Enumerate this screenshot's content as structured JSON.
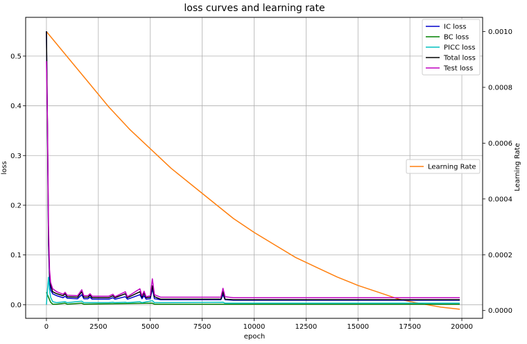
{
  "chart_data": {
    "type": "line",
    "title": "loss curves and learning rate",
    "xlabel": "epoch",
    "ylabel": "loss",
    "y2label": "Learning Rate",
    "xlim": [
      -1000,
      21000
    ],
    "ylim": [
      -0.0275,
      0.578
    ],
    "y2lim": [
      -2.8e-05,
      0.001051
    ],
    "x_ticks": [
      0,
      2500,
      5000,
      7500,
      10000,
      12500,
      15000,
      17500,
      20000
    ],
    "y_ticks": [
      0.0,
      0.1,
      0.2,
      0.3,
      0.4,
      0.5
    ],
    "y2_ticks": [
      0.0,
      0.0002,
      0.0004,
      0.0006,
      0.0008,
      0.001
    ],
    "x_tick_labels": [
      "0",
      "2500",
      "5000",
      "7500",
      "10000",
      "12500",
      "15000",
      "17500",
      "20000"
    ],
    "y_tick_labels": [
      "0.0",
      "0.1",
      "0.2",
      "0.3",
      "0.4",
      "0.5"
    ],
    "y2_tick_labels": [
      "0.0000",
      "0.0002",
      "0.0004",
      "0.0006",
      "0.0008",
      "0.0010"
    ],
    "grid": true,
    "legend_position": "top-right",
    "legend2_position": "center-right",
    "series": [
      {
        "name": "IC loss",
        "color": "#0000cc",
        "axis": "left",
        "points": [
          [
            0,
            0.55
          ],
          [
            50,
            0.35
          ],
          [
            100,
            0.12
          ],
          [
            150,
            0.05
          ],
          [
            200,
            0.03
          ],
          [
            300,
            0.022
          ],
          [
            500,
            0.018
          ],
          [
            800,
            0.014
          ],
          [
            900,
            0.017
          ],
          [
            1000,
            0.013
          ],
          [
            1500,
            0.012
          ],
          [
            1700,
            0.02
          ],
          [
            1800,
            0.012
          ],
          [
            2000,
            0.012
          ],
          [
            2100,
            0.015
          ],
          [
            2200,
            0.011
          ],
          [
            3000,
            0.011
          ],
          [
            3200,
            0.014
          ],
          [
            3300,
            0.011
          ],
          [
            3800,
            0.016
          ],
          [
            3900,
            0.011
          ],
          [
            4500,
            0.02
          ],
          [
            4600,
            0.012
          ],
          [
            4700,
            0.018
          ],
          [
            4800,
            0.011
          ],
          [
            5000,
            0.012
          ],
          [
            5100,
            0.032
          ],
          [
            5200,
            0.012
          ],
          [
            5500,
            0.01
          ],
          [
            8400,
            0.01
          ],
          [
            8500,
            0.02
          ],
          [
            8600,
            0.01
          ],
          [
            9000,
            0.009
          ],
          [
            19900,
            0.009
          ]
        ]
      },
      {
        "name": "BC loss",
        "color": "#008000",
        "axis": "left",
        "points": [
          [
            0,
            0.025
          ],
          [
            100,
            0.015
          ],
          [
            200,
            0.005
          ],
          [
            300,
            0.001
          ],
          [
            500,
            0.001
          ],
          [
            900,
            0.003
          ],
          [
            1000,
            0.001
          ],
          [
            1700,
            0.003
          ],
          [
            1800,
            0.001
          ],
          [
            5100,
            0.003
          ],
          [
            5200,
            0.001
          ],
          [
            19900,
            0.001
          ]
        ]
      },
      {
        "name": "PICC loss",
        "color": "#00bfbf",
        "axis": "left",
        "points": [
          [
            0,
            0.0
          ],
          [
            50,
            0.03
          ],
          [
            100,
            0.055
          ],
          [
            150,
            0.03
          ],
          [
            200,
            0.015
          ],
          [
            300,
            0.006
          ],
          [
            500,
            0.004
          ],
          [
            900,
            0.006
          ],
          [
            1000,
            0.004
          ],
          [
            1700,
            0.007
          ],
          [
            1800,
            0.004
          ],
          [
            3000,
            0.004
          ],
          [
            3200,
            0.005
          ],
          [
            3300,
            0.004
          ],
          [
            3800,
            0.005
          ],
          [
            3900,
            0.004
          ],
          [
            4500,
            0.006
          ],
          [
            4600,
            0.004
          ],
          [
            5100,
            0.008
          ],
          [
            5200,
            0.004
          ],
          [
            8500,
            0.005
          ],
          [
            8600,
            0.003
          ],
          [
            19900,
            0.003
          ]
        ]
      },
      {
        "name": "Total loss",
        "color": "#000000",
        "axis": "left",
        "points": [
          [
            0,
            0.55
          ],
          [
            50,
            0.36
          ],
          [
            100,
            0.13
          ],
          [
            150,
            0.06
          ],
          [
            200,
            0.04
          ],
          [
            300,
            0.026
          ],
          [
            500,
            0.022
          ],
          [
            800,
            0.018
          ],
          [
            900,
            0.022
          ],
          [
            1000,
            0.016
          ],
          [
            1500,
            0.015
          ],
          [
            1700,
            0.026
          ],
          [
            1800,
            0.015
          ],
          [
            2000,
            0.015
          ],
          [
            2100,
            0.019
          ],
          [
            2200,
            0.014
          ],
          [
            3000,
            0.014
          ],
          [
            3200,
            0.018
          ],
          [
            3300,
            0.014
          ],
          [
            3800,
            0.022
          ],
          [
            3900,
            0.014
          ],
          [
            4500,
            0.026
          ],
          [
            4600,
            0.015
          ],
          [
            4700,
            0.023
          ],
          [
            4800,
            0.014
          ],
          [
            5000,
            0.015
          ],
          [
            5100,
            0.038
          ],
          [
            5200,
            0.016
          ],
          [
            5500,
            0.011
          ],
          [
            8400,
            0.011
          ],
          [
            8500,
            0.026
          ],
          [
            8600,
            0.011
          ],
          [
            9000,
            0.01
          ],
          [
            19900,
            0.01
          ]
        ]
      },
      {
        "name": "Test loss",
        "color": "#bf00bf",
        "axis": "left",
        "points": [
          [
            0,
            0.49
          ],
          [
            50,
            0.37
          ],
          [
            100,
            0.16
          ],
          [
            150,
            0.07
          ],
          [
            200,
            0.045
          ],
          [
            300,
            0.032
          ],
          [
            500,
            0.026
          ],
          [
            800,
            0.021
          ],
          [
            900,
            0.025
          ],
          [
            1000,
            0.019
          ],
          [
            1500,
            0.018
          ],
          [
            1700,
            0.03
          ],
          [
            1800,
            0.018
          ],
          [
            2000,
            0.018
          ],
          [
            2100,
            0.022
          ],
          [
            2200,
            0.017
          ],
          [
            3000,
            0.017
          ],
          [
            3200,
            0.021
          ],
          [
            3300,
            0.016
          ],
          [
            3800,
            0.026
          ],
          [
            3900,
            0.016
          ],
          [
            4500,
            0.032
          ],
          [
            4600,
            0.018
          ],
          [
            4700,
            0.027
          ],
          [
            4800,
            0.016
          ],
          [
            5000,
            0.018
          ],
          [
            5100,
            0.052
          ],
          [
            5200,
            0.02
          ],
          [
            5500,
            0.015
          ],
          [
            8400,
            0.015
          ],
          [
            8500,
            0.033
          ],
          [
            8600,
            0.016
          ],
          [
            9000,
            0.014
          ],
          [
            19900,
            0.014
          ]
        ]
      },
      {
        "name": "Learning Rate",
        "color": "#ff7f0e",
        "axis": "right",
        "points": [
          [
            0,
            0.001
          ],
          [
            1000,
            0.00091
          ],
          [
            2000,
            0.00082
          ],
          [
            3000,
            0.00073
          ],
          [
            4000,
            0.00065
          ],
          [
            5000,
            0.00058
          ],
          [
            6000,
            0.00051
          ],
          [
            7000,
            0.00045
          ],
          [
            8000,
            0.00039
          ],
          [
            9000,
            0.00033
          ],
          [
            10000,
            0.00028
          ],
          [
            11000,
            0.000235
          ],
          [
            12000,
            0.00019
          ],
          [
            13000,
            0.000155
          ],
          [
            14000,
            0.00012
          ],
          [
            15000,
            9e-05
          ],
          [
            16000,
            6.5e-05
          ],
          [
            17000,
            4e-05
          ],
          [
            18000,
            2.5e-05
          ],
          [
            19000,
            1.2e-05
          ],
          [
            19900,
            4.5e-06
          ]
        ]
      }
    ]
  }
}
